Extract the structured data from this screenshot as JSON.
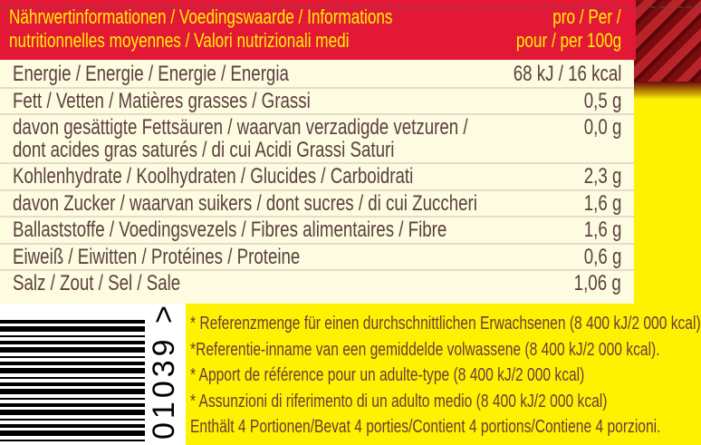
{
  "header": {
    "title_line1": "Nährwertinformationen / Voedingswaarde / Informations",
    "title_line2": "nutritionnelles moyennes / Valori nutrizionali medi",
    "per_line1": "pro / Per /",
    "per_line2": "pour / per 100g"
  },
  "rows": [
    {
      "label": "Energie / Energie / Energie / Energia",
      "value": "68 kJ / 16 kcal"
    },
    {
      "label": "Fett / Vetten / Matières grasses / Grassi",
      "value": "0,5 g"
    },
    {
      "label": "davon gesättigte Fettsäuren / waarvan verzadigde vetzuren /",
      "label2": "dont acides gras saturés / di cui Acidi Grassi Saturi",
      "value": "0,0 g"
    },
    {
      "label": "Kohlenhydrate / Koolhydraten / Glucides / Carboidrati",
      "value": "2,3 g"
    },
    {
      "label": "davon Zucker / waarvan suikers / dont sucres / di cui Zuccheri",
      "value": "1,6 g"
    },
    {
      "label": "Ballaststoffe / Voedingsvezels / Fibres alimentaires / Fibre",
      "value": "1,6 g"
    },
    {
      "label": "Eiweiß / Eiwitten / Protéines / Proteine",
      "value": "0,6 g"
    },
    {
      "label": "Salz / Zout / Sel / Sale",
      "value": "1,06 g"
    }
  ],
  "barcode": {
    "digits": "01039",
    "marker": ">"
  },
  "footnotes": [
    "* Referenzmenge für einen durchschnittlichen Erwachsenen (8 400 kJ/2 000 kcal)",
    "*Referentie-inname van een gemiddelde volwassene (8 400 kJ/2 000 kcal).",
    "* Apport de référence pour un adulte-type (8 400 kJ/2 000 kcal)",
    "* Assunzioni di riferimento di un adulto medio (8 400 kJ/2 000 kcal)",
    "Enthält 4 Portionen/Bevat 4 porties/Contient 4 portions/Contiene 4 porzioni."
  ],
  "colors": {
    "header_bg": "#e31837",
    "header_text": "#fff200",
    "background": "#fff200",
    "panel": "#fdfbe0",
    "text": "#5a4040"
  }
}
